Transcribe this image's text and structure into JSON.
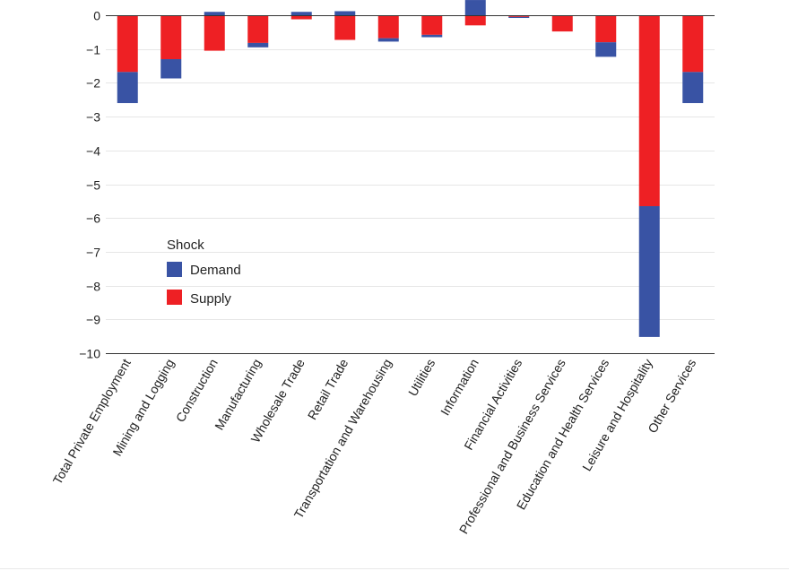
{
  "chart_data": {
    "type": "bar",
    "stacked": true,
    "categories": [
      "Total Private Employment",
      "Mining and Logging",
      "Construction",
      "Manufacturing",
      "Wholesale Trade",
      "Retail Trade",
      "Transportation and Warehousing",
      "Utilities",
      "Information",
      "Financial Activities",
      "Professional and Business Services",
      "Education and Health Services",
      "Leisure and Hospitality",
      "Other Services"
    ],
    "series": [
      {
        "name": "Supply",
        "color": "#ee2024",
        "values": [
          -1.68,
          -1.3,
          -1.05,
          -0.82,
          -0.12,
          -0.73,
          -0.68,
          -0.58,
          -0.3,
          -0.05,
          -0.48,
          -0.8,
          -5.65,
          -1.68
        ]
      },
      {
        "name": "Demand",
        "color": "#3953a4",
        "values": [
          -0.92,
          -0.57,
          0.1,
          -0.13,
          0.1,
          0.12,
          -0.1,
          -0.07,
          0.45,
          -0.03,
          0.0,
          -0.43,
          -3.87,
          -0.92
        ]
      }
    ],
    "ylim": [
      -10,
      0
    ],
    "yticks": [
      0,
      -1,
      -2,
      -3,
      -4,
      -5,
      -6,
      -7,
      -8,
      -9,
      -10
    ],
    "ytick_labels": [
      "0",
      "−1",
      "−2",
      "−3",
      "−4",
      "−5",
      "−6",
      "−7",
      "−8",
      "−9",
      "−10"
    ],
    "legend": {
      "title": "Shock",
      "position": "lower-left",
      "entries": [
        {
          "label": "Demand",
          "color": "#3953a4"
        },
        {
          "label": "Supply",
          "color": "#ee2024"
        }
      ]
    },
    "grid": true,
    "title": "",
    "xlabel": "",
    "ylabel": ""
  }
}
